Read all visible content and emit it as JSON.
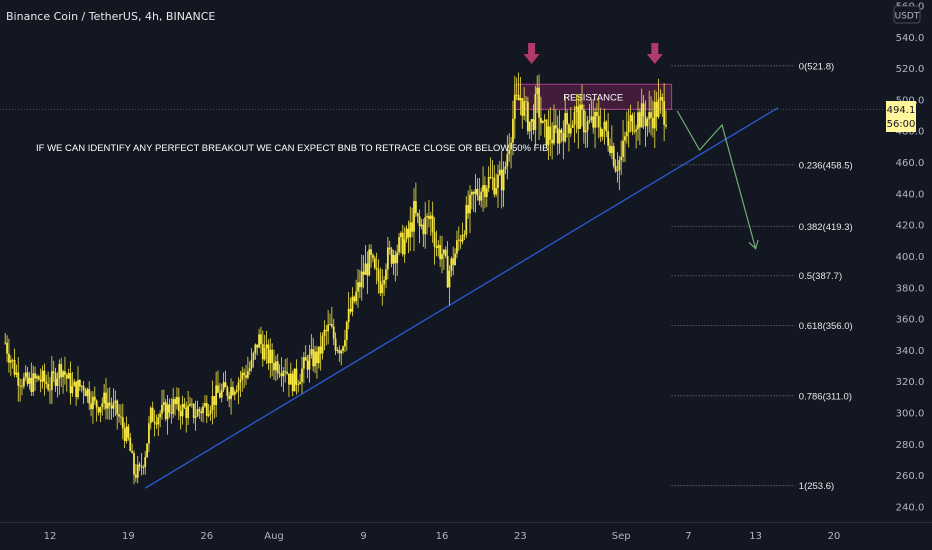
{
  "header": {
    "symbol_title": "Binance Coin / TetherUS, 4h, BINANCE"
  },
  "annotation": {
    "text": "IF WE CAN IDENTIFY ANY PERFECT BREAKOUT WE CAN EXPECT BNB TO RETRACE CLOSE OR BELOW 50% FIB"
  },
  "resistance": {
    "label": "RESISTANCE",
    "low": 494,
    "high": 510,
    "fill": "#4a1d3f",
    "border": "#b03c8c"
  },
  "price_scale": {
    "currency": "USDT",
    "price": "494.1",
    "countdown": "56:00"
  },
  "colors": {
    "background": "#131722",
    "candle": "#f5e642",
    "trendline": "#2a5bd7",
    "projection": "#6fae72",
    "arrow": "#b13a6b",
    "text": "#e8e8e8",
    "axis_text": "#b2b5be",
    "price_badge": "#fff59d"
  },
  "chart_data": {
    "type": "candlestick",
    "title": "Binance Coin / TetherUS, 4h, BINANCE",
    "ylim": [
      230,
      560
    ],
    "y_ticks": [
      "560.0",
      "540.0",
      "520.0",
      "500.0",
      "480.0",
      "460.0",
      "440.0",
      "420.0",
      "400.0",
      "380.0",
      "360.0",
      "340.0",
      "320.0",
      "300.0",
      "280.0",
      "260.0",
      "240.0"
    ],
    "x_ticks": [
      "12",
      "19",
      "26",
      "Aug",
      "9",
      "16",
      "23",
      "Sep",
      "7",
      "13",
      "20"
    ],
    "x_tick_days": [
      12,
      19,
      26,
      32,
      40,
      47,
      54,
      63,
      69,
      75,
      82
    ],
    "day_range": [
      7.5,
      91
    ],
    "price_path": [
      [
        8,
        345
      ],
      [
        9,
        325
      ],
      [
        10,
        318
      ],
      [
        11,
        322
      ],
      [
        12,
        318
      ],
      [
        13,
        330
      ],
      [
        14,
        315
      ],
      [
        15,
        318
      ],
      [
        16,
        305
      ],
      [
        17,
        308
      ],
      [
        18,
        300
      ],
      [
        19,
        282
      ],
      [
        19.5,
        262
      ],
      [
        20,
        262
      ],
      [
        20.5,
        275
      ],
      [
        21,
        298
      ],
      [
        22,
        300
      ],
      [
        23,
        305
      ],
      [
        24,
        302
      ],
      [
        25,
        300
      ],
      [
        26,
        305
      ],
      [
        27,
        312
      ],
      [
        28,
        315
      ],
      [
        29,
        322
      ],
      [
        30,
        330
      ],
      [
        30.6,
        348
      ],
      [
        31.2,
        338
      ],
      [
        32,
        332
      ],
      [
        33,
        330
      ],
      [
        33.5,
        320
      ],
      [
        34,
        322
      ],
      [
        35,
        333
      ],
      [
        36,
        336
      ],
      [
        36.5,
        350
      ],
      [
        37,
        354
      ],
      [
        37.5,
        345
      ],
      [
        38,
        342
      ],
      [
        38.5,
        358
      ],
      [
        39,
        368
      ],
      [
        40,
        390
      ],
      [
        40.6,
        398
      ],
      [
        41,
        388
      ],
      [
        41.5,
        383
      ],
      [
        42,
        398
      ],
      [
        43,
        405
      ],
      [
        44,
        412
      ],
      [
        44.5,
        428
      ],
      [
        45,
        418
      ],
      [
        46,
        425
      ],
      [
        46.5,
        407
      ],
      [
        47,
        402
      ],
      [
        47.5,
        388
      ],
      [
        48,
        398
      ],
      [
        49,
        422
      ],
      [
        50,
        440
      ],
      [
        51,
        448
      ],
      [
        52,
        448
      ],
      [
        52.5,
        450
      ],
      [
        53,
        475
      ],
      [
        53.5,
        495
      ],
      [
        54,
        502
      ],
      [
        54.5,
        490
      ],
      [
        55,
        484
      ],
      [
        55.5,
        500
      ],
      [
        56,
        480
      ],
      [
        57,
        476
      ],
      [
        58,
        484
      ],
      [
        59,
        490
      ],
      [
        60,
        484
      ],
      [
        61,
        485
      ],
      [
        62,
        475
      ],
      [
        62.5,
        460
      ],
      [
        63,
        462
      ],
      [
        63.5,
        480
      ],
      [
        64,
        488
      ],
      [
        65,
        490
      ],
      [
        65.5,
        487
      ],
      [
        66,
        493
      ],
      [
        66.5,
        496
      ],
      [
        67,
        492
      ]
    ],
    "support_trendline": {
      "from": [
        20.5,
        252
      ],
      "to": [
        77,
        495
      ]
    },
    "resistance_zone": {
      "label": "RESISTANCE",
      "low": 494,
      "high": 510,
      "from_day": 53.5,
      "to_day": 67.5
    },
    "projection_path": [
      [
        68,
        493
      ],
      [
        70,
        468
      ],
      [
        72,
        484
      ],
      [
        75,
        405
      ]
    ],
    "markers": [
      {
        "type": "down-arrow",
        "day": 55
      },
      {
        "type": "down-arrow",
        "day": 66
      }
    ],
    "fib_levels": [
      {
        "label": "0(521.8)",
        "value": 521.8
      },
      {
        "label": "0.236(458.5)",
        "value": 458.5
      },
      {
        "label": "0.382(419.3)",
        "value": 419.3
      },
      {
        "label": "0.5(387.7)",
        "value": 387.7
      },
      {
        "label": "0.618(356.0)",
        "value": 356.0
      },
      {
        "label": "0.786(311.0)",
        "value": 311.0
      },
      {
        "label": "1(253.6)",
        "value": 253.6
      }
    ],
    "fib_day_range": [
      67.5,
      78.5
    ],
    "current_price": 494.1
  }
}
